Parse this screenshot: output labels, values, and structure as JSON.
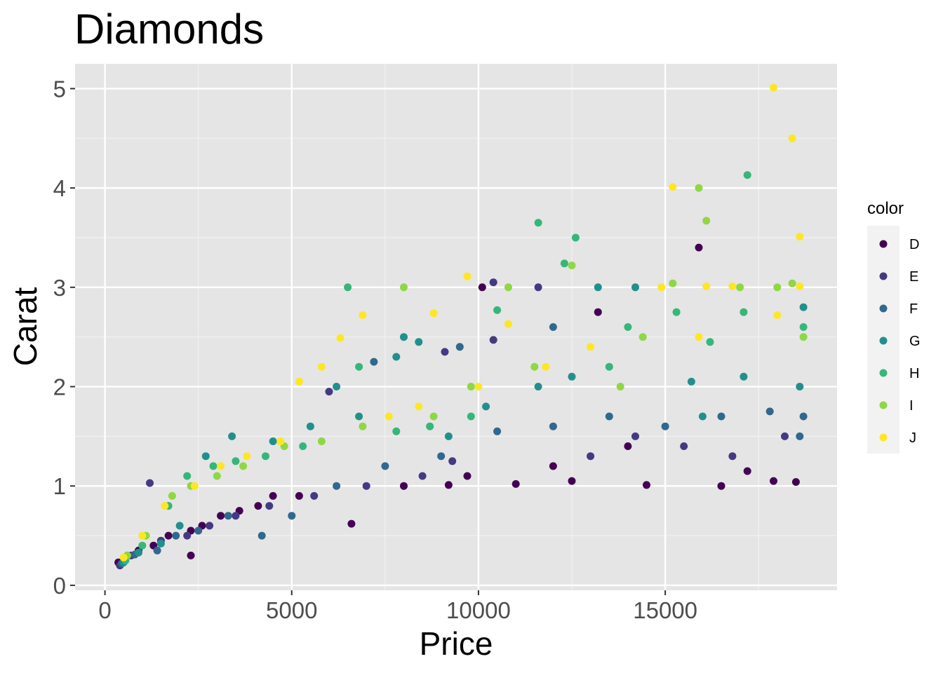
{
  "chart_data": {
    "type": "scatter",
    "title": "Diamonds",
    "xlabel": "Price",
    "ylabel": "Carat",
    "xlim": [
      -800,
      19600
    ],
    "ylim": [
      -0.05,
      5.25
    ],
    "x_ticks": [
      0,
      5000,
      10000,
      15000
    ],
    "x_tick_labels": [
      "0",
      "5000",
      "10000",
      "15000"
    ],
    "y_ticks": [
      0,
      1,
      2,
      3,
      4,
      5
    ],
    "y_tick_labels": [
      "0",
      "1",
      "2",
      "3",
      "4",
      "5"
    ],
    "grid": true,
    "panel_background": "#e5e5e5",
    "legend": {
      "title": "color",
      "position": "right",
      "entries": [
        {
          "label": "D",
          "color": "#440154"
        },
        {
          "label": "E",
          "color": "#443a83"
        },
        {
          "label": "F",
          "color": "#31688e"
        },
        {
          "label": "G",
          "color": "#21908d"
        },
        {
          "label": "H",
          "color": "#35b779"
        },
        {
          "label": "I",
          "color": "#8fd744"
        },
        {
          "label": "J",
          "color": "#fde725"
        }
      ]
    },
    "series": [
      {
        "name": "D",
        "points": [
          [
            357,
            0.23
          ],
          [
            600,
            0.3
          ],
          [
            900,
            0.35
          ],
          [
            1300,
            0.4
          ],
          [
            1700,
            0.5
          ],
          [
            2300,
            0.55
          ],
          [
            2600,
            0.6
          ],
          [
            3100,
            0.7
          ],
          [
            3600,
            0.75
          ],
          [
            4100,
            0.8
          ],
          [
            4500,
            0.9
          ],
          [
            5200,
            0.9
          ],
          [
            6600,
            0.62
          ],
          [
            8000,
            1.0
          ],
          [
            9200,
            1.01
          ],
          [
            11000,
            1.02
          ],
          [
            12500,
            1.05
          ],
          [
            14500,
            1.01
          ],
          [
            16500,
            1.0
          ],
          [
            17900,
            1.05
          ],
          [
            18500,
            1.04
          ],
          [
            15900,
            3.4
          ],
          [
            13200,
            2.75
          ],
          [
            10100,
            3.0
          ],
          [
            2300,
            0.3
          ],
          [
            12000,
            1.2
          ],
          [
            17200,
            1.15
          ],
          [
            14000,
            1.4
          ],
          [
            9700,
            1.1
          ]
        ]
      },
      {
        "name": "E",
        "points": [
          [
            400,
            0.2
          ],
          [
            700,
            0.3
          ],
          [
            1200,
            1.03
          ],
          [
            1500,
            0.45
          ],
          [
            2200,
            0.5
          ],
          [
            2800,
            0.6
          ],
          [
            3500,
            0.7
          ],
          [
            4400,
            0.8
          ],
          [
            5600,
            0.9
          ],
          [
            7000,
            1.0
          ],
          [
            8500,
            1.1
          ],
          [
            9300,
            1.25
          ],
          [
            10400,
            3.05
          ],
          [
            11600,
            3.0
          ],
          [
            10400,
            2.47
          ],
          [
            13000,
            1.3
          ],
          [
            15500,
            1.4
          ],
          [
            18200,
            1.5
          ],
          [
            16800,
            1.3
          ],
          [
            14200,
            1.5
          ],
          [
            9100,
            2.35
          ],
          [
            6000,
            1.95
          ]
        ]
      },
      {
        "name": "F",
        "points": [
          [
            450,
            0.22
          ],
          [
            800,
            0.31
          ],
          [
            1400,
            0.35
          ],
          [
            1900,
            0.5
          ],
          [
            2500,
            0.55
          ],
          [
            3300,
            0.7
          ],
          [
            4200,
            0.5
          ],
          [
            5000,
            0.7
          ],
          [
            6200,
            1.0
          ],
          [
            7500,
            1.2
          ],
          [
            9000,
            1.3
          ],
          [
            10500,
            1.55
          ],
          [
            12000,
            1.6
          ],
          [
            13500,
            1.7
          ],
          [
            15000,
            1.6
          ],
          [
            16500,
            1.7
          ],
          [
            17800,
            1.75
          ],
          [
            18700,
            1.7
          ],
          [
            18600,
            1.5
          ],
          [
            12000,
            2.6
          ],
          [
            9500,
            2.4
          ],
          [
            7200,
            2.25
          ]
        ]
      },
      {
        "name": "G",
        "points": [
          [
            500,
            0.23
          ],
          [
            900,
            0.33
          ],
          [
            1500,
            0.42
          ],
          [
            2000,
            0.6
          ],
          [
            2700,
            1.3
          ],
          [
            3400,
            1.5
          ],
          [
            4500,
            1.45
          ],
          [
            5500,
            1.6
          ],
          [
            6800,
            1.7
          ],
          [
            7800,
            2.3
          ],
          [
            8400,
            2.45
          ],
          [
            9200,
            1.5
          ],
          [
            10200,
            1.8
          ],
          [
            11600,
            2.0
          ],
          [
            12500,
            2.1
          ],
          [
            13200,
            3.0
          ],
          [
            14200,
            3.0
          ],
          [
            15700,
            2.05
          ],
          [
            17100,
            2.1
          ],
          [
            18700,
            2.8
          ],
          [
            18600,
            2.0
          ],
          [
            16000,
            1.7
          ],
          [
            8000,
            2.5
          ],
          [
            6200,
            2.0
          ]
        ]
      },
      {
        "name": "H",
        "points": [
          [
            550,
            0.25
          ],
          [
            1000,
            0.4
          ],
          [
            1700,
            0.8
          ],
          [
            2200,
            1.1
          ],
          [
            2900,
            1.2
          ],
          [
            3500,
            1.25
          ],
          [
            4300,
            1.3
          ],
          [
            5300,
            1.4
          ],
          [
            6500,
            3.0
          ],
          [
            6800,
            2.2
          ],
          [
            7800,
            1.55
          ],
          [
            8700,
            1.6
          ],
          [
            9800,
            1.7
          ],
          [
            10500,
            2.77
          ],
          [
            11600,
            3.65
          ],
          [
            12300,
            3.24
          ],
          [
            12600,
            3.5
          ],
          [
            13500,
            2.2
          ],
          [
            15300,
            2.75
          ],
          [
            17200,
            4.13
          ],
          [
            17100,
            2.75
          ],
          [
            18700,
            2.6
          ],
          [
            14000,
            2.6
          ],
          [
            16200,
            2.45
          ]
        ]
      },
      {
        "name": "I",
        "points": [
          [
            600,
            0.3
          ],
          [
            1100,
            0.5
          ],
          [
            1800,
            0.9
          ],
          [
            2300,
            1.0
          ],
          [
            3000,
            1.1
          ],
          [
            3700,
            1.2
          ],
          [
            4800,
            1.4
          ],
          [
            5800,
            1.45
          ],
          [
            6900,
            1.6
          ],
          [
            8000,
            3.0
          ],
          [
            8800,
            1.7
          ],
          [
            9800,
            2.0
          ],
          [
            10800,
            3.0
          ],
          [
            11500,
            2.2
          ],
          [
            12500,
            3.22
          ],
          [
            14400,
            2.5
          ],
          [
            15200,
            3.04
          ],
          [
            15900,
            4.0
          ],
          [
            16100,
            3.67
          ],
          [
            17000,
            3.0
          ],
          [
            18000,
            3.0
          ],
          [
            18400,
            3.04
          ],
          [
            18700,
            2.5
          ],
          [
            13800,
            2.0
          ]
        ]
      },
      {
        "name": "J",
        "points": [
          [
            500,
            0.28
          ],
          [
            1000,
            0.5
          ],
          [
            1600,
            0.8
          ],
          [
            2400,
            1.0
          ],
          [
            3100,
            1.2
          ],
          [
            3800,
            1.3
          ],
          [
            4700,
            1.45
          ],
          [
            5200,
            2.05
          ],
          [
            5800,
            2.2
          ],
          [
            6300,
            2.49
          ],
          [
            6900,
            2.72
          ],
          [
            7600,
            1.7
          ],
          [
            8400,
            1.8
          ],
          [
            8800,
            2.74
          ],
          [
            9700,
            3.11
          ],
          [
            10800,
            2.63
          ],
          [
            11800,
            2.2
          ],
          [
            13000,
            2.4
          ],
          [
            14900,
            3.0
          ],
          [
            15200,
            4.01
          ],
          [
            16100,
            3.01
          ],
          [
            16800,
            3.01
          ],
          [
            17900,
            5.01
          ],
          [
            18400,
            4.5
          ],
          [
            18600,
            3.51
          ],
          [
            18600,
            3.01
          ],
          [
            18000,
            2.72
          ],
          [
            15900,
            2.5
          ],
          [
            10000,
            2.0
          ]
        ]
      }
    ]
  }
}
